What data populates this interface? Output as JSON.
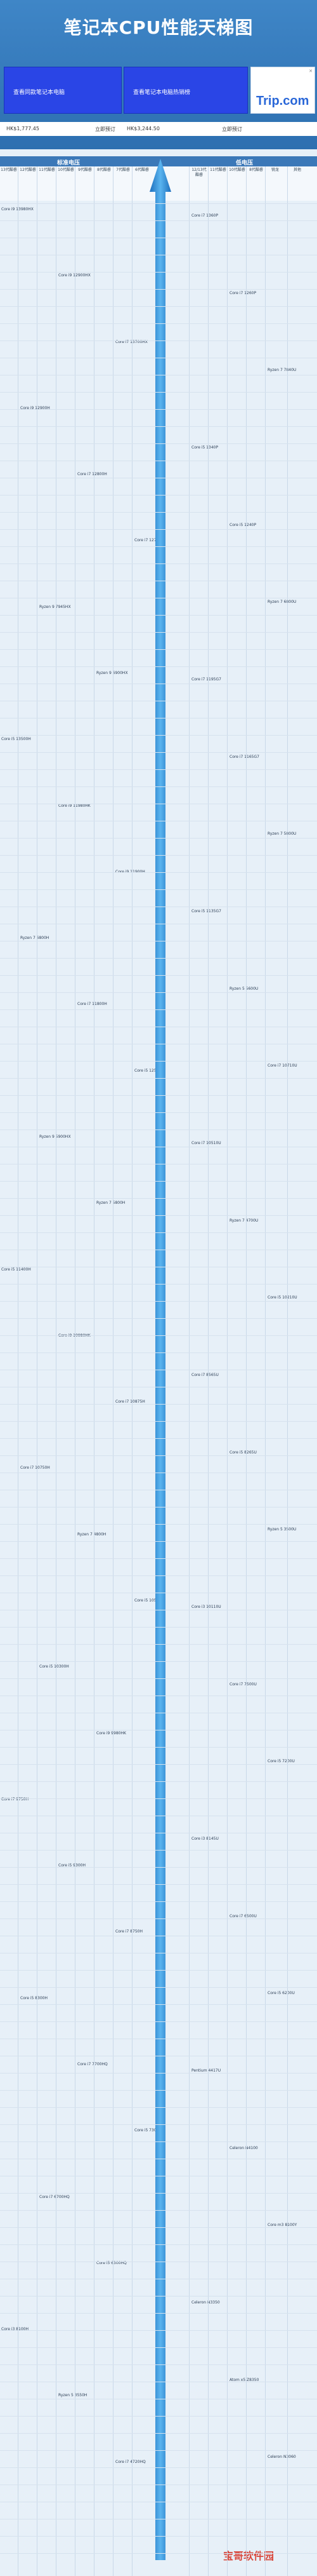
{
  "header": {
    "title": "笔记本CPU性能天梯图"
  },
  "ads": {
    "left_text": "查看同款笔记本电脑",
    "mid_text": "查看笔记本电脑热销榜",
    "trip_logo": "Trip.com"
  },
  "prices": {
    "p1": "HK$1,777.45",
    "p2": "立即预订",
    "p3": "HK$3,244.50",
    "p4": "立即预订"
  },
  "sections": {
    "standard": "标准电压",
    "low": "低电压"
  },
  "columns": {
    "left": [
      "13代酷睿",
      "12代酷睿",
      "11代酷睿",
      "10代酷睿",
      "9代酷睿",
      "8代酷睿",
      "7代酷睿",
      "6代酷睿"
    ],
    "right": [
      "12/13代酷睿",
      "11代酷睿",
      "10代酷睿",
      "8代酷睿",
      "锐龙",
      "其他"
    ]
  },
  "chips": {
    "left": [
      "Core i9 13980HX",
      "Core i9 12900HX",
      "Core i7 13700HX",
      "Core i9 12900H",
      "Core i7 12800H",
      "Core i7 12700H",
      "Ryzen 9 7945HX",
      "Ryzen 9 6900HX",
      "Core i5 13500H",
      "Core i9 11980HK",
      "Core i9 11900H",
      "Ryzen 7 6800H",
      "Core i7 11800H",
      "Core i5 12500H",
      "Ryzen 9 5900HX",
      "Ryzen 7 5800H",
      "Core i5 11400H",
      "Core i9 10980HK",
      "Core i7 10875H",
      "Core i7 10750H",
      "Ryzen 7 4800H",
      "Core i5 10500H",
      "Core i5 10300H",
      "Core i9 9980HK",
      "Core i7 9750H",
      "Core i5 9300H",
      "Core i7 8750H",
      "Core i5 8300H",
      "Core i7 7700HQ",
      "Core i5 7300HQ",
      "Core i7 6700HQ",
      "Core i5 6300HQ",
      "Core i3 8100H",
      "Ryzen 5 3550H",
      "Core i7 4720HQ"
    ],
    "right": [
      "Core i7 1360P",
      "Core i7 1260P",
      "Ryzen 7 7840U",
      "Core i5 1340P",
      "Core i5 1240P",
      "Ryzen 7 6800U",
      "Core i7 1195G7",
      "Core i7 1165G7",
      "Ryzen 7 5800U",
      "Core i5 1135G7",
      "Ryzen 5 5600U",
      "Core i7 10710U",
      "Core i7 10510U",
      "Ryzen 7 4700U",
      "Core i5 10210U",
      "Core i7 8565U",
      "Core i5 8265U",
      "Ryzen 5 3500U",
      "Core i3 10110U",
      "Core i7 7500U",
      "Core i5 7200U",
      "Core i3 8145U",
      "Core i7 6500U",
      "Core i5 6200U",
      "Pentium 4417U",
      "Celeron N4100",
      "Core m3 8100Y",
      "Celeron N3350",
      "Atom x5 Z8350",
      "Celeron N3060"
    ]
  },
  "watermark": "宝哥软件园",
  "colors": {
    "header": "#3f86c7",
    "arrow": "#2e8fd6",
    "ad": "#2a45e6"
  }
}
